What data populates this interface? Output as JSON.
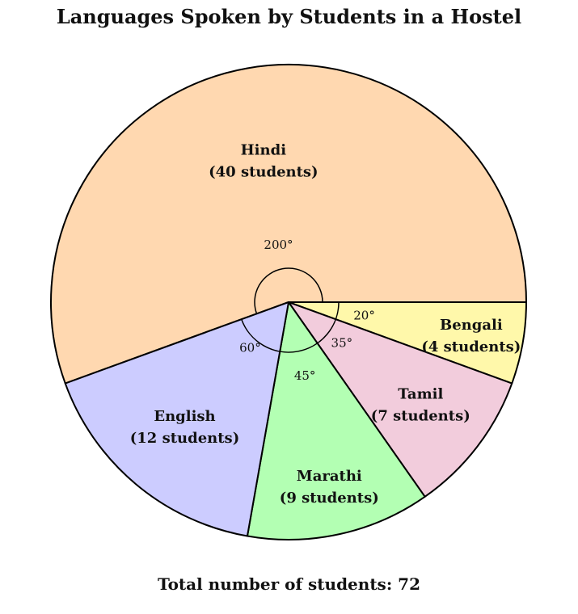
{
  "chart_data": {
    "type": "pie",
    "title": "Languages Spoken by Students in a Hostel",
    "slices": [
      {
        "name": "Hindi",
        "value": 40,
        "value_label": "(40 students)",
        "angle_label": "200°",
        "color": "#FFD8B0"
      },
      {
        "name": "Bengali",
        "value": 4,
        "value_label": "(4 students)",
        "angle_label": "20°",
        "color": "#FFF8AA"
      },
      {
        "name": "Tamil",
        "value": 7,
        "value_label": "(7 students)",
        "angle_label": "35°",
        "color": "#F2CCDC"
      },
      {
        "name": "Marathi",
        "value": 9,
        "value_label": "(9 students)",
        "angle_label": "45°",
        "color": "#B3FFB3"
      },
      {
        "name": "English",
        "value": 12,
        "value_label": "(12 students)",
        "angle_label": "60°",
        "color": "#CCCCFF"
      }
    ],
    "total_text": "Total number of students:",
    "total_value": "72"
  }
}
